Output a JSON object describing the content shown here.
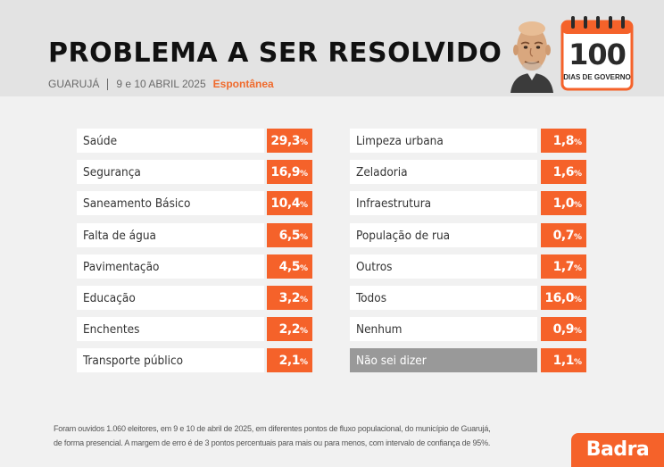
{
  "header": {
    "title": "PROBLEMA A SER RESOLVIDO",
    "location": "GUARUJÁ",
    "dates": "9 e 10 ABRIL 2025",
    "tag": "Espontânea",
    "badge_number": "100",
    "badge_text": "DIAS DE GOVERNO"
  },
  "chart_data": {
    "type": "table",
    "unit": "%",
    "left_column": [
      {
        "label": "Saúde",
        "value": "29,3"
      },
      {
        "label": "Segurança",
        "value": "16,9"
      },
      {
        "label": "Saneamento Básico",
        "value": "10,4"
      },
      {
        "label": "Falta de água",
        "value": "6,5"
      },
      {
        "label": "Pavimentação",
        "value": "4,5"
      },
      {
        "label": "Educação",
        "value": "3,2"
      },
      {
        "label": "Enchentes",
        "value": "2,2"
      },
      {
        "label": "Transporte público",
        "value": "2,1"
      }
    ],
    "right_column": [
      {
        "label": "Limpeza urbana",
        "value": "1,8"
      },
      {
        "label": "Zeladoria",
        "value": "1,6"
      },
      {
        "label": "Infraestrutura",
        "value": "1,0"
      },
      {
        "label": "População de rua",
        "value": "0,7"
      },
      {
        "label": "Outros",
        "value": "1,7"
      },
      {
        "label": "Todos",
        "value": "16,0"
      },
      {
        "label": "Nenhum",
        "value": "0,9"
      },
      {
        "label": "Não sei dizer",
        "value": "1,1",
        "highlight": true
      }
    ]
  },
  "footnote": {
    "line1": "Foram ouvidos 1.060 eleitores, em 9 e 10 de abril de 2025, em diferentes pontos de fluxo populacional, do município de Guarujá,",
    "line2": "de forma presencial. A margem de erro é de 3 pontos percentuais para mais ou para menos, com intervalo de confiança de 95%."
  },
  "brand": {
    "logo_text": "Badra",
    "accent_color": "#f5622a"
  }
}
